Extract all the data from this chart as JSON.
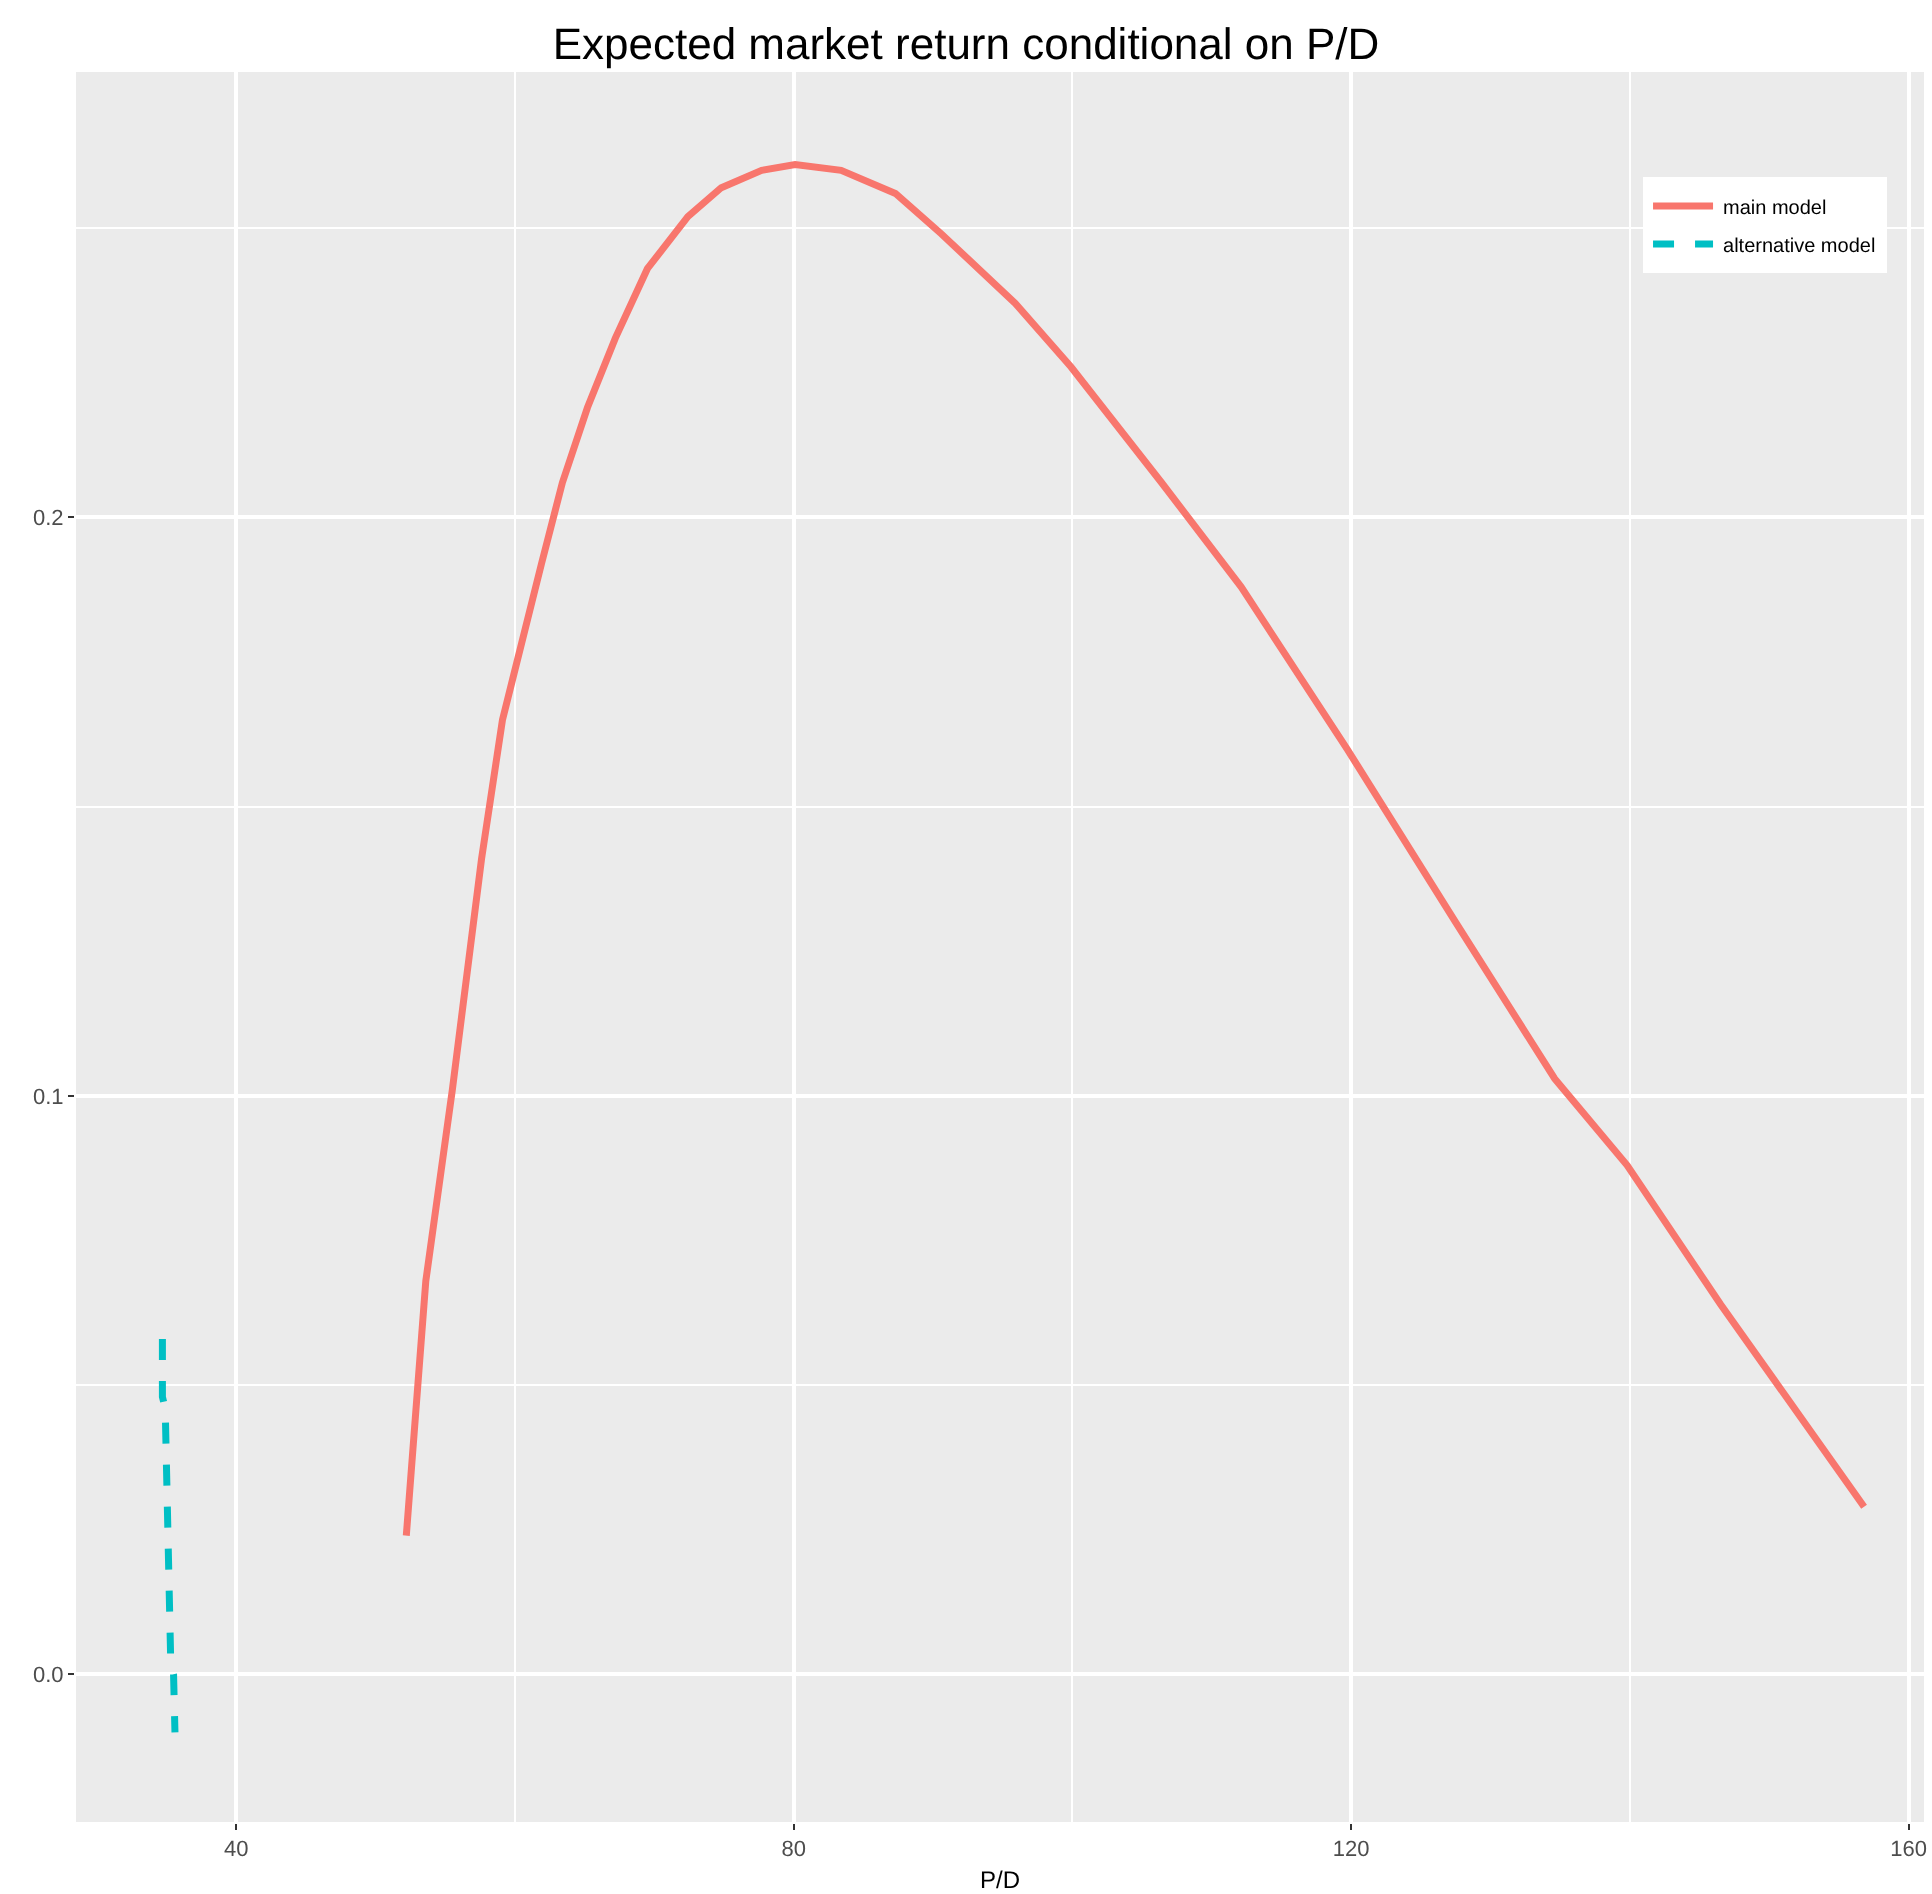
{
  "chart_data": {
    "type": "line",
    "title": "Expected market return conditional on P/D",
    "xlabel": "P/D",
    "xlim": [
      28.5,
      161.1
    ],
    "xticks": [
      40,
      80,
      120,
      160
    ],
    "ylim": [
      -0.0255,
      0.277
    ],
    "yticks": [
      {
        "value": 0,
        "label": "0.0"
      },
      0.1,
      0.2
    ],
    "grid": true,
    "legend": "top right",
    "marker": "none",
    "series": [
      {
        "name": "main model",
        "color": "#f8766d",
        "line_style": "solid",
        "x": [
          52.2,
          53.6,
          55.5,
          57.6,
          59.1,
          61.9,
          63.4,
          65.2,
          67.2,
          69.5,
          72.4,
          74.8,
          77.7,
          80.1,
          83.4,
          87.3,
          90.6,
          95.9,
          99.9,
          106.4,
          112.1,
          119.7,
          127.5,
          134.6,
          139.8,
          146.5,
          156.8
        ],
        "values": [
          0.024,
          0.068,
          0.101,
          0.141,
          0.165,
          0.192,
          0.206,
          0.219,
          0.231,
          0.243,
          0.252,
          0.257,
          0.26,
          0.261,
          0.26,
          0.256,
          0.249,
          0.237,
          0.226,
          0.206,
          0.188,
          0.16,
          0.13,
          0.103,
          0.088,
          0.064,
          0.029
        ]
      },
      {
        "name": "alternative model",
        "color": "#00bfc4",
        "line_style": "dashed",
        "x": [
          34.7,
          34.7,
          34.9,
          35.3,
          35.5,
          35.6
        ],
        "values": [
          0.058,
          0.048,
          0.046,
          0.002,
          0.0,
          -0.01
        ]
      }
    ]
  }
}
